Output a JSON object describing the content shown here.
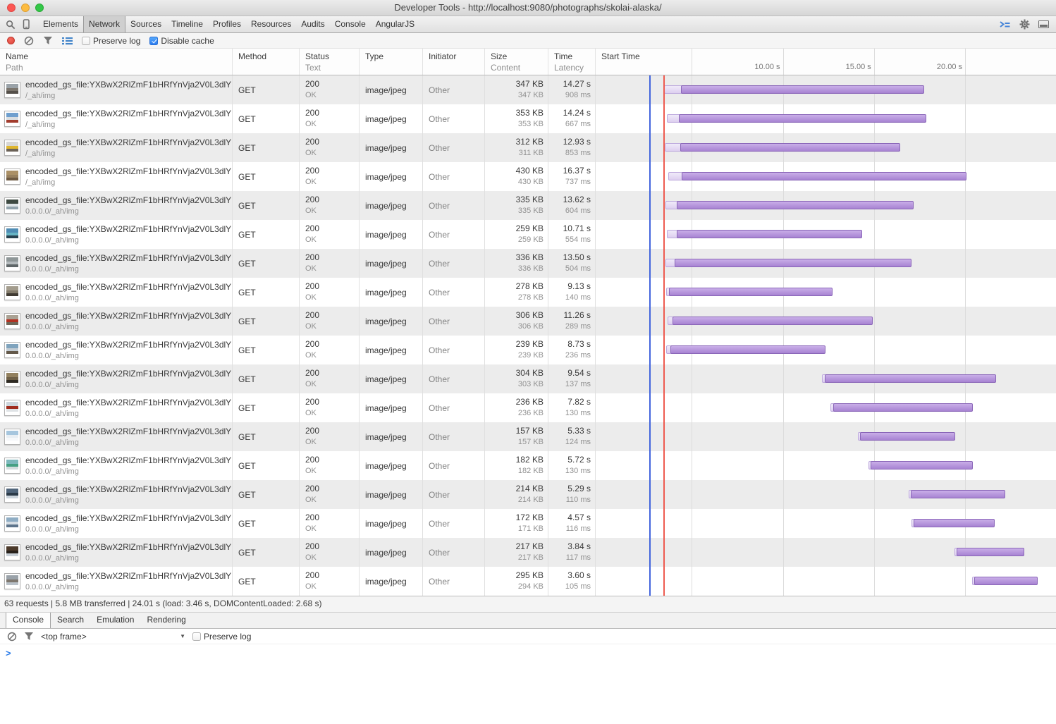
{
  "window": {
    "title": "Developer Tools - http://localhost:9080/photographs/skolai-alaska/"
  },
  "main_tabs": {
    "items": [
      "Elements",
      "Network",
      "Sources",
      "Timeline",
      "Profiles",
      "Resources",
      "Audits",
      "Console",
      "AngularJS"
    ],
    "selected": "Network"
  },
  "toolbar": {
    "preserve_log_label": "Preserve log",
    "disable_cache_label": "Disable cache",
    "preserve_log_checked": false,
    "disable_cache_checked": true
  },
  "table": {
    "columns": [
      {
        "primary": "Name",
        "secondary": "Path"
      },
      {
        "primary": "Method",
        "secondary": ""
      },
      {
        "primary": "Status",
        "secondary": "Text"
      },
      {
        "primary": "Type",
        "secondary": ""
      },
      {
        "primary": "Initiator",
        "secondary": ""
      },
      {
        "primary": "Size",
        "secondary": "Content"
      },
      {
        "primary": "Time",
        "secondary": "Latency"
      },
      {
        "primary": "Start Time",
        "secondary": ""
      }
    ],
    "rows": [
      {
        "name": "encoded_gs_file:YXBwX2RlZmF1bHRfYnVja2V0L3dlY…",
        "path": "/_ah/img",
        "method": "GET",
        "status": "200",
        "status_text": "OK",
        "type": "image/jpeg",
        "initiator": "Other",
        "size": "347 KB",
        "content": "347 KB",
        "time": "14.27 s",
        "latency": "908 ms",
        "start_s": 3.5,
        "duration_s": 14.27,
        "latency_s": 0.908,
        "thumb": [
          "#9aa2a8",
          "#7b756d",
          "#55504a"
        ]
      },
      {
        "name": "encoded_gs_file:YXBwX2RlZmF1bHRfYnVja2V0L3dlY…",
        "path": "/_ah/img",
        "method": "GET",
        "status": "200",
        "status_text": "OK",
        "type": "image/jpeg",
        "initiator": "Other",
        "size": "353 KB",
        "content": "353 KB",
        "time": "14.24 s",
        "latency": "667 ms",
        "start_s": 3.62,
        "duration_s": 14.24,
        "latency_s": 0.667,
        "thumb": [
          "#6f9fce",
          "#d9dde0",
          "#a23c2d"
        ]
      },
      {
        "name": "encoded_gs_file:YXBwX2RlZmF1bHRfYnVja2V0L3dlY…",
        "path": "/_ah/img",
        "method": "GET",
        "status": "200",
        "status_text": "OK",
        "type": "image/jpeg",
        "initiator": "Other",
        "size": "312 KB",
        "content": "311 KB",
        "time": "12.93 s",
        "latency": "853 ms",
        "start_s": 3.52,
        "duration_s": 12.93,
        "latency_s": 0.853,
        "thumb": [
          "#d6d6d4",
          "#dfb62e",
          "#6b6257"
        ]
      },
      {
        "name": "encoded_gs_file:YXBwX2RlZmF1bHRfYnVja2V0L3dlY…",
        "path": "/_ah/img",
        "method": "GET",
        "status": "200",
        "status_text": "OK",
        "type": "image/jpeg",
        "initiator": "Other",
        "size": "430 KB",
        "content": "430 KB",
        "time": "16.37 s",
        "latency": "737 ms",
        "start_s": 3.7,
        "duration_s": 16.37,
        "latency_s": 0.737,
        "thumb": [
          "#ab9066",
          "#97805e",
          "#6e5a42"
        ]
      },
      {
        "name": "encoded_gs_file:YXBwX2RlZmF1bHRfYnVja2V0L3dlY…",
        "path": "0.0.0.0/_ah/img",
        "method": "GET",
        "status": "200",
        "status_text": "OK",
        "type": "image/jpeg",
        "initiator": "Other",
        "size": "335 KB",
        "content": "335 KB",
        "time": "13.62 s",
        "latency": "604 ms",
        "start_s": 3.56,
        "duration_s": 13.62,
        "latency_s": 0.604,
        "thumb": [
          "#3e4a42",
          "#dfe5e8",
          "#93a4ad"
        ]
      },
      {
        "name": "encoded_gs_file:YXBwX2RlZmF1bHRfYnVja2V0L3dlY…",
        "path": "0.0.0.0/_ah/img",
        "method": "GET",
        "status": "200",
        "status_text": "OK",
        "type": "image/jpeg",
        "initiator": "Other",
        "size": "259 KB",
        "content": "259 KB",
        "time": "10.71 s",
        "latency": "554 ms",
        "start_s": 3.64,
        "duration_s": 10.71,
        "latency_s": 0.554,
        "thumb": [
          "#4f8cb4",
          "#66b4c4",
          "#27414f"
        ]
      },
      {
        "name": "encoded_gs_file:YXBwX2RlZmF1bHRfYnVja2V0L3dlY…",
        "path": "0.0.0.0/_ah/img",
        "method": "GET",
        "status": "200",
        "status_text": "OK",
        "type": "image/jpeg",
        "initiator": "Other",
        "size": "336 KB",
        "content": "336 KB",
        "time": "13.50 s",
        "latency": "504 ms",
        "start_s": 3.56,
        "duration_s": 13.5,
        "latency_s": 0.504,
        "thumb": [
          "#8f9798",
          "#b4babd",
          "#5f6668"
        ]
      },
      {
        "name": "encoded_gs_file:YXBwX2RlZmF1bHRfYnVja2V0L3dlY…",
        "path": "0.0.0.0/_ah/img",
        "method": "GET",
        "status": "200",
        "status_text": "OK",
        "type": "image/jpeg",
        "initiator": "Other",
        "size": "278 KB",
        "content": "278 KB",
        "time": "9.13 s",
        "latency": "140 ms",
        "start_s": 3.6,
        "duration_s": 9.13,
        "latency_s": 0.14,
        "thumb": [
          "#a39c8d",
          "#837b6b",
          "#403a32"
        ]
      },
      {
        "name": "encoded_gs_file:YXBwX2RlZmF1bHRfYnVja2V0L3dlY…",
        "path": "0.0.0.0/_ah/img",
        "method": "GET",
        "status": "200",
        "status_text": "OK",
        "type": "image/jpeg",
        "initiator": "Other",
        "size": "306 KB",
        "content": "306 KB",
        "time": "11.26 s",
        "latency": "289 ms",
        "start_s": 3.66,
        "duration_s": 11.26,
        "latency_s": 0.289,
        "thumb": [
          "#aaa294",
          "#b23222",
          "#6e6758"
        ]
      },
      {
        "name": "encoded_gs_file:YXBwX2RlZmF1bHRfYnVja2V0L3dlY…",
        "path": "0.0.0.0/_ah/img",
        "method": "GET",
        "status": "200",
        "status_text": "OK",
        "type": "image/jpeg",
        "initiator": "Other",
        "size": "239 KB",
        "content": "239 KB",
        "time": "8.73 s",
        "latency": "236 ms",
        "start_s": 3.6,
        "duration_s": 8.73,
        "latency_s": 0.236,
        "thumb": [
          "#7fa3bd",
          "#c3ccd3",
          "#64594a"
        ]
      },
      {
        "name": "encoded_gs_file:YXBwX2RlZmF1bHRfYnVja2V0L3dlY…",
        "path": "0.0.0.0/_ah/img",
        "method": "GET",
        "status": "200",
        "status_text": "OK",
        "type": "image/jpeg",
        "initiator": "Other",
        "size": "304 KB",
        "content": "303 KB",
        "time": "9.54 s",
        "latency": "137 ms",
        "start_s": 12.15,
        "duration_s": 9.54,
        "latency_s": 0.137,
        "thumb": [
          "#93815f",
          "#6e5f46",
          "#2e2a22"
        ]
      },
      {
        "name": "encoded_gs_file:YXBwX2RlZmF1bHRfYnVja2V0L3dlY…",
        "path": "0.0.0.0/_ah/img",
        "method": "GET",
        "status": "200",
        "status_text": "OK",
        "type": "image/jpeg",
        "initiator": "Other",
        "size": "236 KB",
        "content": "236 KB",
        "time": "7.82 s",
        "latency": "130 ms",
        "start_s": 12.62,
        "duration_s": 7.82,
        "latency_s": 0.13,
        "thumb": [
          "#ccd5dc",
          "#a02c1e",
          "#dfe3e6"
        ]
      },
      {
        "name": "encoded_gs_file:YXBwX2RlZmF1bHRfYnVja2V0L3dlY…",
        "path": "0.0.0.0/_ah/img",
        "method": "GET",
        "status": "200",
        "status_text": "OK",
        "type": "image/jpeg",
        "initiator": "Other",
        "size": "157 KB",
        "content": "157 KB",
        "time": "5.33 s",
        "latency": "124 ms",
        "start_s": 14.12,
        "duration_s": 5.33,
        "latency_s": 0.124,
        "thumb": [
          "#a6c6de",
          "#e8eef3",
          "#f6f8fa"
        ]
      },
      {
        "name": "encoded_gs_file:YXBwX2RlZmF1bHRfYnVja2V0L3dlY…",
        "path": "0.0.0.0/_ah/img",
        "method": "GET",
        "status": "200",
        "status_text": "OK",
        "type": "image/jpeg",
        "initiator": "Other",
        "size": "182 KB",
        "content": "182 KB",
        "time": "5.72 s",
        "latency": "130 ms",
        "start_s": 14.7,
        "duration_s": 5.72,
        "latency_s": 0.13,
        "thumb": [
          "#7db8bc",
          "#45a083",
          "#d3dcdd"
        ]
      },
      {
        "name": "encoded_gs_file:YXBwX2RlZmF1bHRfYnVja2V0L3dlY…",
        "path": "0.0.0.0/_ah/img",
        "method": "GET",
        "status": "200",
        "status_text": "OK",
        "type": "image/jpeg",
        "initiator": "Other",
        "size": "214 KB",
        "content": "214 KB",
        "time": "5.29 s",
        "latency": "110 ms",
        "start_s": 16.9,
        "duration_s": 5.29,
        "latency_s": 0.11,
        "thumb": [
          "#50657b",
          "#2b3a48",
          "#cbd4dc"
        ]
      },
      {
        "name": "encoded_gs_file:YXBwX2RlZmF1bHRfYnVja2V0L3dlY…",
        "path": "0.0.0.0/_ah/img",
        "method": "GET",
        "status": "200",
        "status_text": "OK",
        "type": "image/jpeg",
        "initiator": "Other",
        "size": "172 KB",
        "content": "171 KB",
        "time": "4.57 s",
        "latency": "116 ms",
        "start_s": 17.05,
        "duration_s": 4.57,
        "latency_s": 0.116,
        "thumb": [
          "#8fadc4",
          "#d6dee5",
          "#5d748b"
        ]
      },
      {
        "name": "encoded_gs_file:YXBwX2RlZmF1bHRfYnVja2V0L3dlY…",
        "path": "0.0.0.0/_ah/img",
        "method": "GET",
        "status": "200",
        "status_text": "OK",
        "type": "image/jpeg",
        "initiator": "Other",
        "size": "217 KB",
        "content": "217 KB",
        "time": "3.84 s",
        "latency": "117 ms",
        "start_s": 19.42,
        "duration_s": 3.84,
        "latency_s": 0.117,
        "thumb": [
          "#4c3a2b",
          "#27211b",
          "#c6ced6"
        ]
      },
      {
        "name": "encoded_gs_file:YXBwX2RlZmF1bHRfYnVja2V0L3dlY…",
        "path": "0.0.0.0/_ah/img",
        "method": "GET",
        "status": "200",
        "status_text": "OK",
        "type": "image/jpeg",
        "initiator": "Other",
        "size": "295 KB",
        "content": "294 KB",
        "time": "3.60 s",
        "latency": "105 ms",
        "start_s": 20.38,
        "duration_s": 3.6,
        "latency_s": 0.105,
        "thumb": [
          "#9aa2a9",
          "#7e776e",
          "#b9c1c9"
        ]
      }
    ]
  },
  "timeline": {
    "ticks": [
      {
        "t": 5,
        "label": ""
      },
      {
        "t": 10,
        "label": "10.00 s"
      },
      {
        "t": 15,
        "label": "15.00 s"
      },
      {
        "t": 20,
        "label": "20.00 s"
      }
    ],
    "dom_content_loaded_s": 2.68,
    "load_s": 3.46
  },
  "summary": {
    "text": "63 requests | 5.8 MB transferred | 24.01 s (load: 3.46 s, DOMContentLoaded: 2.68 s)"
  },
  "drawer": {
    "tabs": [
      "Console",
      "Search",
      "Emulation",
      "Rendering"
    ],
    "selected": "Console",
    "frame_selector": "<top frame>",
    "preserve_log_label": "Preserve log",
    "preserve_log_checked": false,
    "prompt": ">"
  }
}
